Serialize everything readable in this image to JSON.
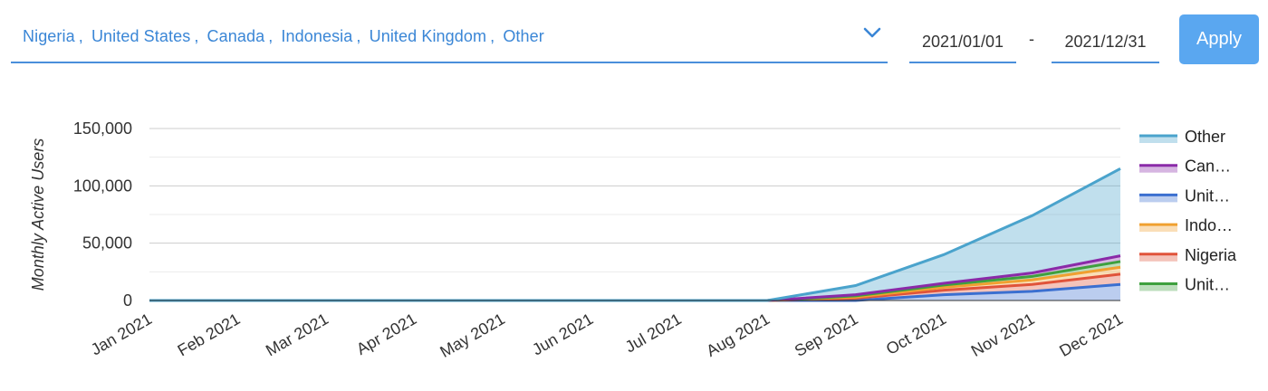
{
  "filters": {
    "countries": [
      "Nigeria",
      "United States",
      "Canada",
      "Indonesia",
      "United Kingdom",
      "Other"
    ],
    "start_date": "2021/01/01",
    "date_separator": "-",
    "end_date": "2021/12/31",
    "apply_label": "Apply"
  },
  "chart_data": {
    "type": "area",
    "stacked": true,
    "title": "",
    "xlabel": "",
    "ylabel": "Monthly Active Users",
    "categories": [
      "Jan 2021",
      "Feb 2021",
      "Mar 2021",
      "Apr 2021",
      "May 2021",
      "Jun 2021",
      "Jul 2021",
      "Aug 2021",
      "Sep 2021",
      "Oct 2021",
      "Nov 2021",
      "Dec 2021"
    ],
    "ylim": [
      0,
      150000
    ],
    "yticks": [
      0,
      50000,
      100000,
      150000
    ],
    "ytick_labels": [
      "0",
      "50,000",
      "100,000",
      "150,000"
    ],
    "grid": true,
    "legend_position": "right",
    "series": [
      {
        "name": "Unit…",
        "color": "#3b6fd0",
        "values": [
          0,
          0,
          0,
          0,
          0,
          0,
          0,
          0,
          0,
          5000,
          8000,
          14000
        ]
      },
      {
        "name": "Nigeria",
        "color": "#e0533a",
        "values": [
          0,
          0,
          0,
          0,
          0,
          0,
          0,
          0,
          2000,
          4000,
          6000,
          9000
        ]
      },
      {
        "name": "Indo…",
        "color": "#f0a030",
        "values": [
          0,
          0,
          0,
          0,
          0,
          0,
          0,
          0,
          1000,
          2500,
          4000,
          6000
        ]
      },
      {
        "name": "Unit…",
        "color": "#3ea03e",
        "values": [
          0,
          0,
          0,
          0,
          0,
          0,
          0,
          0,
          1000,
          2000,
          3000,
          5000
        ]
      },
      {
        "name": "Can…",
        "color": "#8a2aa8",
        "values": [
          0,
          0,
          0,
          0,
          0,
          0,
          0,
          0,
          1000,
          1500,
          3000,
          5000
        ]
      },
      {
        "name": "Other",
        "color": "#4aa3cc",
        "values": [
          0,
          0,
          0,
          0,
          0,
          0,
          0,
          0,
          8000,
          25000,
          50000,
          76000
        ]
      }
    ],
    "legend_order": [
      "Other",
      "Can…",
      "Unit…",
      "Indo…",
      "Nigeria",
      "Unit…"
    ]
  }
}
